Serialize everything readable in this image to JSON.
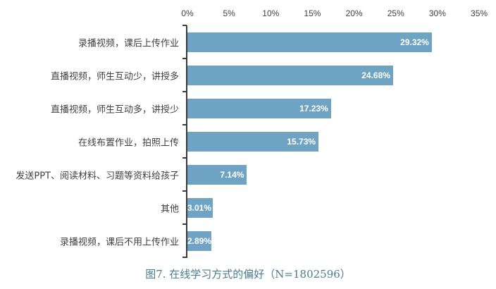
{
  "chart_data": {
    "type": "bar",
    "orientation": "horizontal",
    "title": "图7. 在线学习方式的偏好（N=1802596）",
    "xlabel": "",
    "ylabel": "",
    "xlim": [
      0,
      35
    ],
    "x_ticks": [
      "0%",
      "5%",
      "10%",
      "15%",
      "20%",
      "25%",
      "30%",
      "35%"
    ],
    "x_axis_position": "top",
    "grid": false,
    "legend": null,
    "bar_color": "#6fa3c3",
    "categories": [
      "录播视频，课后上传作业",
      "直播视频，师生互动少，讲授多",
      "直播视频，师生互动多，讲授少",
      "在线布置作业，拍照上传",
      "发送PPT、阅读材料、习题等资料给孩子",
      "其他",
      "录播视频，课后不用上传作业"
    ],
    "values": [
      29.32,
      24.68,
      17.23,
      15.73,
      7.14,
      3.01,
      2.89
    ],
    "value_labels": [
      "29.32%",
      "24.68%",
      "17.23%",
      "15.73%",
      "7.14%",
      "3.01%",
      "2.89%"
    ]
  },
  "caption": "图7. 在线学习方式的偏好（N=1802596）"
}
